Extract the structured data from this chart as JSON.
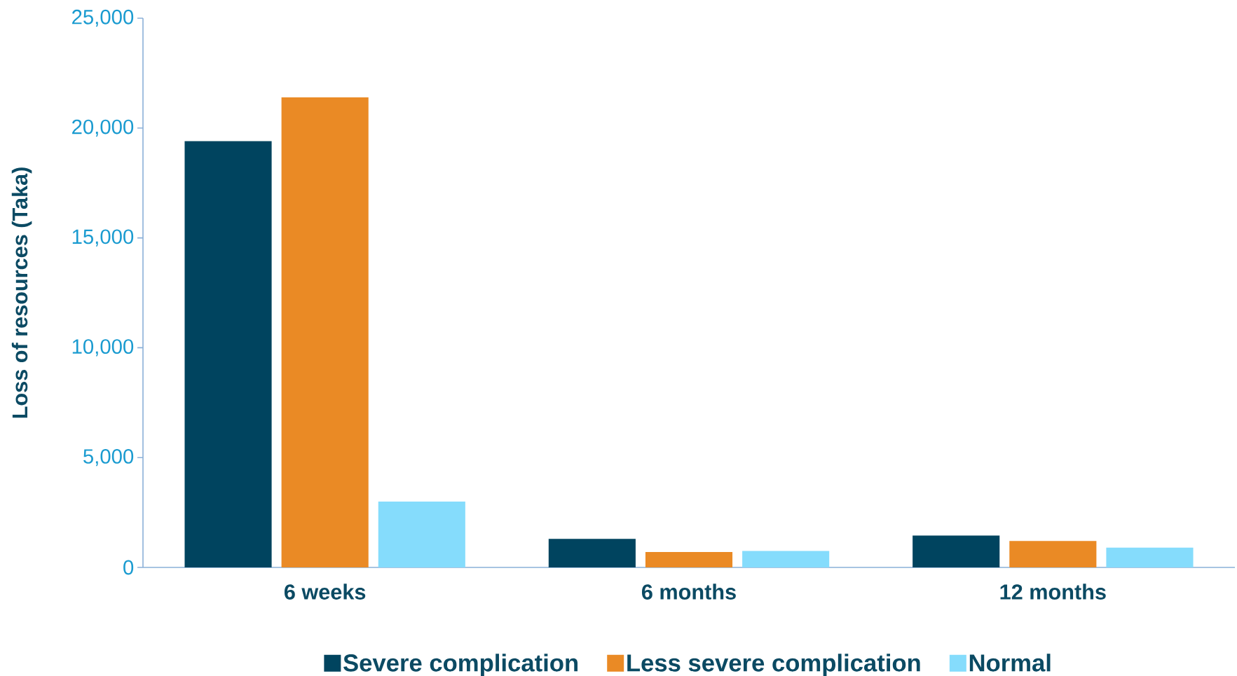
{
  "chart_data": {
    "type": "bar",
    "ylabel": "Loss of resources (Taka)",
    "categories": [
      "6 weeks",
      "6 months",
      "12 months"
    ],
    "series": [
      {
        "name": "Severe complication",
        "color": "#00445f",
        "values": [
          19400,
          1300,
          1450
        ]
      },
      {
        "name": "Less severe complication",
        "color": "#ea8a25",
        "values": [
          21400,
          700,
          1200
        ]
      },
      {
        "name": "Normal",
        "color": "#85dcfc",
        "values": [
          3000,
          750,
          900
        ]
      }
    ],
    "ylim": [
      0,
      25000
    ],
    "yticks": [
      0,
      {
        "value": 5000,
        "label": "5,000"
      },
      {
        "value": 10000,
        "label": "10,000"
      },
      {
        "value": 15000,
        "label": "15,000"
      },
      {
        "value": 20000,
        "label": "20,000"
      },
      {
        "value": 25000,
        "label": "25,000"
      }
    ],
    "legend": "bottom"
  }
}
